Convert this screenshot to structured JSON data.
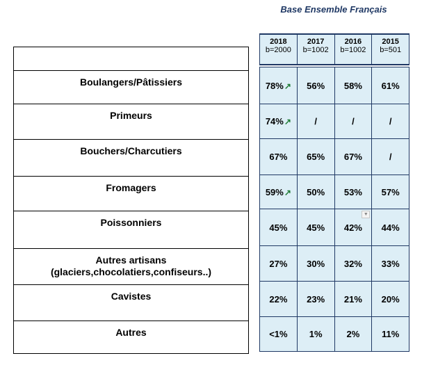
{
  "title": "Base Ensemble Français",
  "columns": [
    {
      "year": "2018",
      "base": "b=2000"
    },
    {
      "year": "2017",
      "base": "b=1002"
    },
    {
      "year": "2016",
      "base": "b=1002"
    },
    {
      "year": "2015",
      "base": "b=501"
    }
  ],
  "rows": [
    {
      "label": "Boulangers/Pâtissiers",
      "values": [
        "78%",
        "56%",
        "58%",
        "61%"
      ],
      "trend_up": true
    },
    {
      "label": "Primeurs",
      "values": [
        "74%",
        "/",
        "/",
        "/"
      ],
      "trend_up": true
    },
    {
      "label": "Bouchers/Charcutiers",
      "values": [
        "67%",
        "65%",
        "67%",
        "/"
      ],
      "trend_up": false
    },
    {
      "label": "Fromagers",
      "values": [
        "59%",
        "50%",
        "53%",
        "57%"
      ],
      "trend_up": true
    },
    {
      "label": "Poissonniers",
      "values": [
        "45%",
        "45%",
        "42%",
        "44%"
      ],
      "trend_up": false
    },
    {
      "label": "Autres artisans\n(glaciers,chocolatiers,confiseurs..)",
      "values": [
        "27%",
        "30%",
        "32%",
        "33%"
      ],
      "trend_up": false
    },
    {
      "label": "Cavistes",
      "values": [
        "22%",
        "23%",
        "21%",
        "20%"
      ],
      "trend_up": false
    },
    {
      "label": "Autres",
      "values": [
        "<1%",
        "1%",
        "2%",
        "11%"
      ],
      "trend_up": false
    }
  ],
  "icons": {
    "trend": "up-arrow-icon",
    "filter": "filter-dropdown-icon"
  },
  "colors": {
    "title": "#1f3864",
    "cell_bg": "#ddeef6",
    "arrow": "#1e7b34"
  }
}
